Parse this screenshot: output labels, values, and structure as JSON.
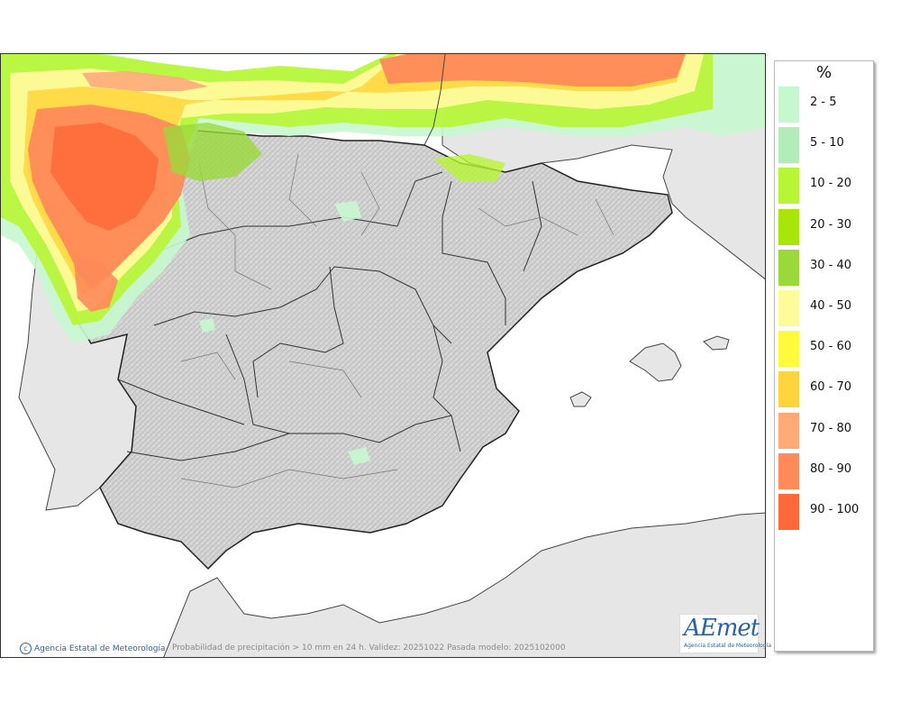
{
  "legend": {
    "unit": "%",
    "items": [
      {
        "label": "2 - 5",
        "color": "#c6f7cf"
      },
      {
        "label": "5 - 10",
        "color": "#b3ebb9"
      },
      {
        "label": "10 - 20",
        "color": "#b8f534"
      },
      {
        "label": "20 - 30",
        "color": "#a8e60a"
      },
      {
        "label": "30 - 40",
        "color": "#9bd93a"
      },
      {
        "label": "40 - 50",
        "color": "#fffa9a"
      },
      {
        "label": "50 - 60",
        "color": "#fffa3c"
      },
      {
        "label": "60 - 70",
        "color": "#ffd43c"
      },
      {
        "label": "70 - 80",
        "color": "#ffaa78"
      },
      {
        "label": "80 - 90",
        "color": "#ff8a5a"
      },
      {
        "label": "90 - 100",
        "color": "#ff6838"
      }
    ]
  },
  "credit": {
    "agency": "Agencia Estatal de Meteorología"
  },
  "caption": "Probabilidad de precipitación > 10 mm en 24 h. Validez: 20251022 Pasada modelo: 2025102000",
  "logo": {
    "word": "AEmet",
    "subtitle": "Agencia Estatal de Meteorología"
  },
  "colors": {
    "sea": "#ffffff",
    "land": "#d4d4d4",
    "foreign_land": "#e6e6e6",
    "border": "#222222",
    "accent_blue": "#2b62a3"
  }
}
